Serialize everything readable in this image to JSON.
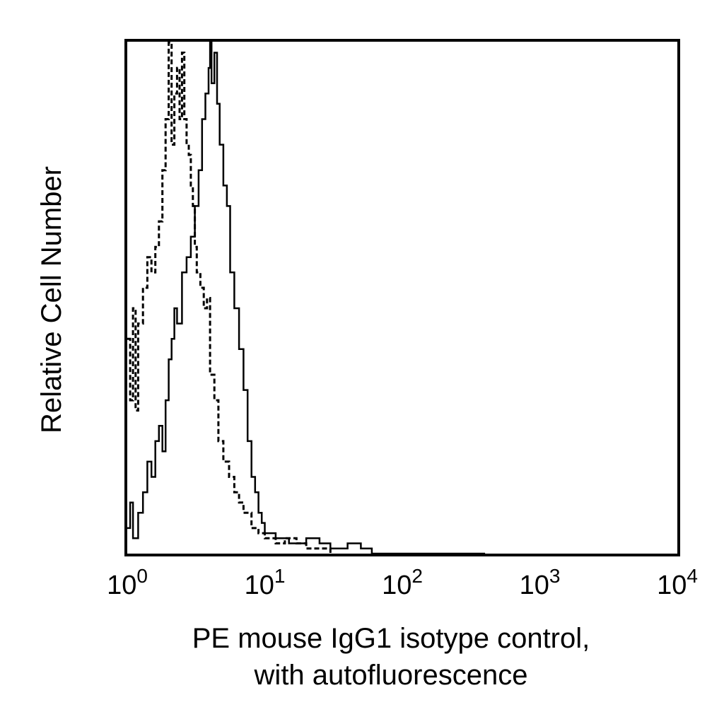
{
  "chart_data": {
    "type": "line",
    "xlabel_lines": [
      "PE mouse IgG1 isotype control,",
      "with autofluorescence"
    ],
    "ylabel": "Relative Cell Number",
    "x_scale": "log",
    "xlim": [
      1,
      10000
    ],
    "ylim": [
      0,
      100
    ],
    "grid": false,
    "x_ticks": [
      {
        "value": 1,
        "base": "10",
        "exp": "0"
      },
      {
        "value": 10,
        "base": "10",
        "exp": "1"
      },
      {
        "value": 100,
        "base": "10",
        "exp": "2"
      },
      {
        "value": 1000,
        "base": "10",
        "exp": "3"
      },
      {
        "value": 10000,
        "base": "10",
        "exp": "4"
      }
    ],
    "series": [
      {
        "style": "dashed",
        "color": "#000000",
        "x": [
          1.0,
          1.05,
          1.1,
          1.15,
          1.2,
          1.3,
          1.4,
          1.5,
          1.6,
          1.7,
          1.8,
          1.9,
          2.0,
          2.1,
          2.2,
          2.3,
          2.4,
          2.5,
          2.6,
          2.7,
          2.8,
          2.9,
          3.0,
          3.1,
          3.2,
          3.4,
          3.6,
          3.8,
          4.0,
          4.3,
          4.6,
          5.0,
          5.5,
          6.0,
          6.5,
          7.0,
          8.0,
          9.0,
          10.0,
          12.0,
          14.0,
          17.0,
          20.0,
          25.0,
          30.0
        ],
        "y": [
          42,
          30,
          48,
          28,
          45,
          52,
          58,
          55,
          60,
          65,
          75,
          85,
          100,
          80,
          90,
          95,
          85,
          98,
          85,
          80,
          78,
          72,
          68,
          60,
          55,
          52,
          48,
          50,
          35,
          30,
          22,
          18,
          15,
          12,
          10,
          8,
          5,
          4,
          3,
          2,
          3,
          2,
          1,
          1,
          0
        ]
      },
      {
        "style": "solid",
        "color": "#000000",
        "x": [
          1.0,
          1.05,
          1.1,
          1.2,
          1.3,
          1.4,
          1.5,
          1.6,
          1.7,
          1.8,
          1.9,
          2.0,
          2.1,
          2.2,
          2.3,
          2.5,
          2.7,
          2.9,
          3.1,
          3.3,
          3.5,
          3.7,
          3.9,
          4.0,
          4.1,
          4.3,
          4.5,
          4.7,
          5.0,
          5.3,
          5.6,
          6.0,
          6.5,
          7.0,
          7.5,
          8.0,
          8.5,
          9.0,
          9.5,
          10.0,
          12.0,
          15.0,
          20.0,
          25.0,
          30.0,
          40.0,
          50.0,
          60.0,
          100.0,
          400.0
        ],
        "y": [
          5,
          10,
          3,
          8,
          12,
          18,
          15,
          22,
          25,
          20,
          30,
          38,
          42,
          48,
          45,
          55,
          58,
          62,
          68,
          75,
          85,
          90,
          95,
          100,
          92,
          98,
          88,
          80,
          72,
          68,
          55,
          48,
          40,
          32,
          22,
          15,
          12,
          8,
          6,
          4,
          3,
          2,
          3,
          2,
          1,
          2,
          1,
          0,
          0,
          0
        ]
      }
    ]
  }
}
